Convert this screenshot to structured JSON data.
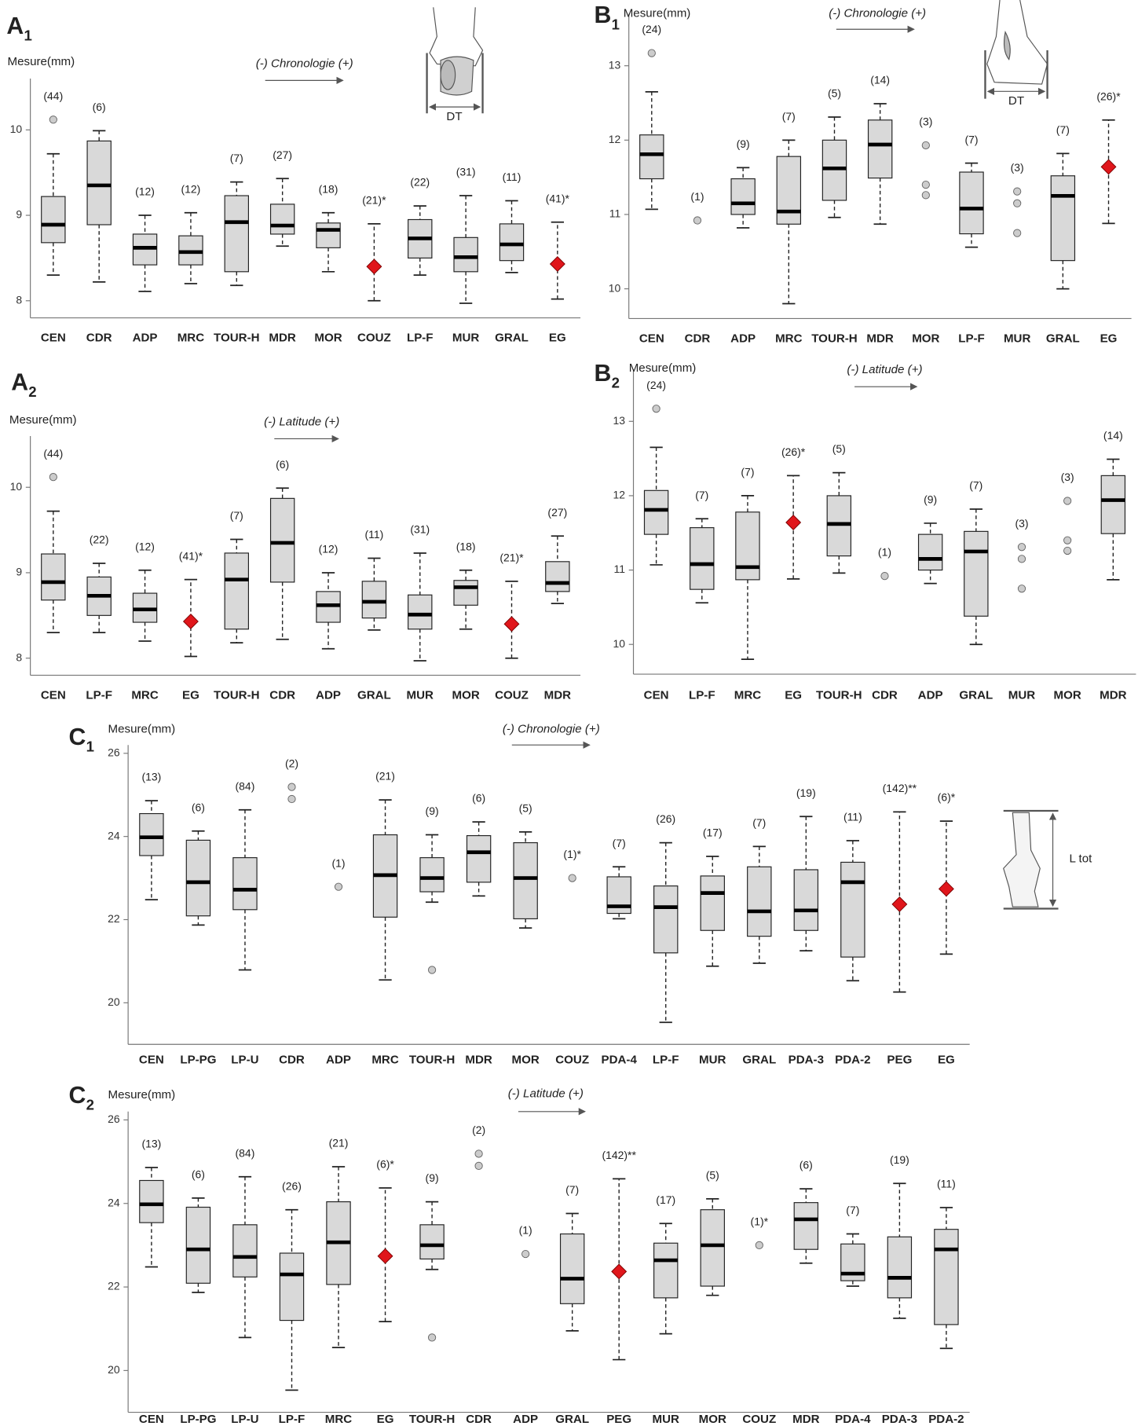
{
  "chart_data": [
    {
      "type": "box",
      "panel": "A",
      "panel_sub": "1",
      "ylabel": "Mesure(mm)",
      "annotation": "(-) Chronologie (+)",
      "figure_label": "DT",
      "categories": [
        "CEN",
        "CDR",
        "ADP",
        "MRC",
        "TOUR-H",
        "MDR",
        "MOR",
        "COUZ",
        "LP-F",
        "MUR",
        "GRAL",
        "EG"
      ],
      "n_labels": [
        "(44)",
        "(6)",
        "(12)",
        "(12)",
        "(7)",
        "(27)",
        "(18)",
        "(21)*",
        "(22)",
        "(31)",
        "(11)",
        "(41)*"
      ],
      "boxes": [
        {
          "low": 8.3,
          "q1": 8.68,
          "median": 8.89,
          "q3": 9.22,
          "high": 9.72,
          "outliers": [
            10.12
          ]
        },
        {
          "low": 8.22,
          "q1": 8.89,
          "median": 9.35,
          "q3": 9.87,
          "high": 9.99
        },
        {
          "low": 8.11,
          "q1": 8.42,
          "median": 8.62,
          "q3": 8.78,
          "high": 9.0
        },
        {
          "low": 8.2,
          "q1": 8.42,
          "median": 8.57,
          "q3": 8.76,
          "high": 9.03
        },
        {
          "low": 8.18,
          "q1": 8.34,
          "median": 8.92,
          "q3": 9.23,
          "high": 9.39
        },
        {
          "low": 8.64,
          "q1": 8.78,
          "median": 8.88,
          "q3": 9.13,
          "high": 9.43
        },
        {
          "low": 8.34,
          "q1": 8.62,
          "median": 8.83,
          "q3": 8.91,
          "high": 9.03
        },
        {
          "mean": 8.4,
          "low": 8.0,
          "high": 8.9
        },
        {
          "low": 8.3,
          "q1": 8.5,
          "median": 8.73,
          "q3": 8.95,
          "high": 9.11
        },
        {
          "low": 7.97,
          "q1": 8.34,
          "median": 8.51,
          "q3": 8.74,
          "high": 9.23
        },
        {
          "low": 8.33,
          "q1": 8.47,
          "median": 8.66,
          "q3": 8.9,
          "high": 9.17
        },
        {
          "mean": 8.43,
          "low": 8.02,
          "high": 8.92
        }
      ],
      "ylim": [
        7.8,
        10.6
      ],
      "yticks": [
        8,
        9,
        10
      ],
      "box_color": "#d9d9d9",
      "mean_color": "#e0161b",
      "outlier_color": "#cccccc"
    },
    {
      "type": "box",
      "panel": "A",
      "panel_sub": "2",
      "ylabel": "Mesure(mm)",
      "annotation": "(-) Latitude (+)",
      "categories": [
        "CEN",
        "LP-F",
        "MRC",
        "EG",
        "TOUR-H",
        "CDR",
        "ADP",
        "GRAL",
        "MUR",
        "MOR",
        "COUZ",
        "MDR"
      ],
      "n_labels": [
        "(44)",
        "(22)",
        "(12)",
        "(41)*",
        "(7)",
        "(6)",
        "(12)",
        "(11)",
        "(31)",
        "(18)",
        "(21)*",
        "(27)"
      ],
      "boxes": [
        {
          "low": 8.3,
          "q1": 8.68,
          "median": 8.89,
          "q3": 9.22,
          "high": 9.72,
          "outliers": [
            10.12
          ]
        },
        {
          "low": 8.3,
          "q1": 8.5,
          "median": 8.73,
          "q3": 8.95,
          "high": 9.11
        },
        {
          "low": 8.2,
          "q1": 8.42,
          "median": 8.57,
          "q3": 8.76,
          "high": 9.03
        },
        {
          "mean": 8.43,
          "low": 8.02,
          "high": 8.92
        },
        {
          "low": 8.18,
          "q1": 8.34,
          "median": 8.92,
          "q3": 9.23,
          "high": 9.39
        },
        {
          "low": 8.22,
          "q1": 8.89,
          "median": 9.35,
          "q3": 9.87,
          "high": 9.99
        },
        {
          "low": 8.11,
          "q1": 8.42,
          "median": 8.62,
          "q3": 8.78,
          "high": 9.0
        },
        {
          "low": 8.33,
          "q1": 8.47,
          "median": 8.66,
          "q3": 8.9,
          "high": 9.17
        },
        {
          "low": 7.97,
          "q1": 8.34,
          "median": 8.51,
          "q3": 8.74,
          "high": 9.23
        },
        {
          "low": 8.34,
          "q1": 8.62,
          "median": 8.83,
          "q3": 8.91,
          "high": 9.03
        },
        {
          "mean": 8.4,
          "low": 8.0,
          "high": 8.9
        },
        {
          "low": 8.64,
          "q1": 8.78,
          "median": 8.88,
          "q3": 9.13,
          "high": 9.43
        }
      ],
      "ylim": [
        7.8,
        10.6
      ],
      "yticks": [
        8,
        9,
        10
      ],
      "box_color": "#d9d9d9",
      "mean_color": "#e0161b",
      "outlier_color": "#cccccc"
    },
    {
      "type": "box",
      "panel": "B",
      "panel_sub": "1",
      "ylabel": "Mesure(mm)",
      "annotation": "(-) Chronologie (+)",
      "figure_label": "DT",
      "categories": [
        "CEN",
        "CDR",
        "ADP",
        "MRC",
        "TOUR-H",
        "MDR",
        "MOR",
        "LP-F",
        "MUR",
        "GRAL",
        "EG"
      ],
      "n_labels": [
        "(24)",
        "(1)",
        "(9)",
        "(7)",
        "(5)",
        "(14)",
        "(3)",
        "(7)",
        "(3)",
        "(7)",
        "(26)*"
      ],
      "boxes": [
        {
          "low": 11.07,
          "q1": 11.48,
          "median": 11.81,
          "q3": 12.07,
          "high": 12.65,
          "outliers": [
            13.17
          ]
        },
        {
          "points": [
            10.92
          ]
        },
        {
          "low": 10.82,
          "q1": 11.0,
          "median": 11.15,
          "q3": 11.48,
          "high": 11.63
        },
        {
          "low": 9.8,
          "q1": 10.87,
          "median": 11.04,
          "q3": 11.78,
          "high": 12.0
        },
        {
          "low": 10.96,
          "q1": 11.19,
          "median": 11.62,
          "q3": 12.0,
          "high": 12.31
        },
        {
          "low": 10.87,
          "q1": 11.49,
          "median": 11.94,
          "q3": 12.27,
          "high": 12.49
        },
        {
          "points": [
            11.93,
            11.4,
            11.26
          ]
        },
        {
          "low": 10.56,
          "q1": 10.74,
          "median": 11.08,
          "q3": 11.57,
          "high": 11.69
        },
        {
          "points": [
            11.31,
            11.15,
            10.75
          ]
        },
        {
          "low": 10.0,
          "q1": 10.38,
          "median": 11.25,
          "q3": 11.52,
          "high": 11.82
        },
        {
          "mean": 11.64,
          "low": 10.88,
          "high": 12.27
        }
      ],
      "ylim": [
        9.6,
        13.7
      ],
      "yticks": [
        10,
        11,
        12,
        13
      ],
      "box_color": "#d9d9d9",
      "mean_color": "#e0161b",
      "outlier_color": "#cccccc"
    },
    {
      "type": "box",
      "panel": "B",
      "panel_sub": "2",
      "ylabel": "Mesure(mm)",
      "annotation": "(-) Latitude (+)",
      "categories": [
        "CEN",
        "LP-F",
        "MRC",
        "EG",
        "TOUR-H",
        "CDR",
        "ADP",
        "GRAL",
        "MUR",
        "MOR",
        "MDR"
      ],
      "n_labels": [
        "(24)",
        "(7)",
        "(7)",
        "(26)*",
        "(5)",
        "(1)",
        "(9)",
        "(7)",
        "(3)",
        "(3)",
        "(14)"
      ],
      "boxes": [
        {
          "low": 11.07,
          "q1": 11.48,
          "median": 11.81,
          "q3": 12.07,
          "high": 12.65,
          "outliers": [
            13.17
          ]
        },
        {
          "low": 10.56,
          "q1": 10.74,
          "median": 11.08,
          "q3": 11.57,
          "high": 11.69
        },
        {
          "low": 9.8,
          "q1": 10.87,
          "median": 11.04,
          "q3": 11.78,
          "high": 12.0
        },
        {
          "mean": 11.64,
          "low": 10.88,
          "high": 12.27
        },
        {
          "low": 10.96,
          "q1": 11.19,
          "median": 11.62,
          "q3": 12.0,
          "high": 12.31
        },
        {
          "points": [
            10.92
          ]
        },
        {
          "low": 10.82,
          "q1": 11.0,
          "median": 11.15,
          "q3": 11.48,
          "high": 11.63
        },
        {
          "low": 10.0,
          "q1": 10.38,
          "median": 11.25,
          "q3": 11.52,
          "high": 11.82
        },
        {
          "points": [
            11.31,
            11.15,
            10.75
          ]
        },
        {
          "points": [
            11.93,
            11.4,
            11.26
          ]
        },
        {
          "low": 10.87,
          "q1": 11.49,
          "median": 11.94,
          "q3": 12.27,
          "high": 12.49
        }
      ],
      "ylim": [
        9.6,
        13.7
      ],
      "yticks": [
        10,
        11,
        12,
        13
      ],
      "box_color": "#d9d9d9",
      "mean_color": "#e0161b",
      "outlier_color": "#cccccc"
    },
    {
      "type": "box",
      "panel": "C",
      "panel_sub": "1",
      "ylabel": "Mesure(mm)",
      "annotation": "(-) Chronologie (+)",
      "figure_label": "L tot",
      "categories": [
        "CEN",
        "LP-PG",
        "LP-U",
        "CDR",
        "ADP",
        "MRC",
        "TOUR-H",
        "MDR",
        "MOR",
        "COUZ",
        "PDA-4",
        "LP-F",
        "MUR",
        "GRAL",
        "PDA-3",
        "PDA-2",
        "PEG",
        "EG"
      ],
      "n_labels": [
        "(13)",
        "(6)",
        "(84)",
        "(2)",
        "(1)",
        "(21)",
        "(9)",
        "(6)",
        "(5)",
        "(1)*",
        "(7)",
        "(26)",
        "(17)",
        "(7)",
        "(19)",
        "(11)",
        "(142)**",
        "(6)*"
      ],
      "boxes": [
        {
          "low": 22.48,
          "q1": 23.54,
          "median": 23.98,
          "q3": 24.55,
          "high": 24.86
        },
        {
          "low": 21.87,
          "q1": 22.09,
          "median": 22.9,
          "q3": 23.91,
          "high": 24.13
        },
        {
          "low": 20.79,
          "q1": 22.24,
          "median": 22.72,
          "q3": 23.49,
          "high": 24.64
        },
        {
          "points": [
            25.19,
            24.9
          ]
        },
        {
          "points": [
            22.79
          ]
        },
        {
          "low": 20.55,
          "q1": 22.06,
          "median": 23.07,
          "q3": 24.04,
          "high": 24.88
        },
        {
          "low": 22.42,
          "q1": 22.67,
          "median": 23.0,
          "q3": 23.49,
          "high": 24.04,
          "outliers": [
            20.79
          ]
        },
        {
          "low": 22.57,
          "q1": 22.9,
          "median": 23.62,
          "q3": 24.02,
          "high": 24.35
        },
        {
          "low": 21.8,
          "q1": 22.02,
          "median": 23.0,
          "q3": 23.85,
          "high": 24.11
        },
        {
          "points": [
            23.0
          ]
        },
        {
          "low": 22.02,
          "q1": 22.15,
          "median": 22.32,
          "q3": 23.03,
          "high": 23.27
        },
        {
          "low": 19.53,
          "q1": 21.2,
          "median": 22.3,
          "q3": 22.81,
          "high": 23.85
        },
        {
          "low": 20.88,
          "q1": 21.74,
          "median": 22.64,
          "q3": 23.05,
          "high": 23.52
        },
        {
          "low": 20.95,
          "q1": 21.6,
          "median": 22.2,
          "q3": 23.27,
          "high": 23.76
        },
        {
          "low": 21.25,
          "q1": 21.74,
          "median": 22.22,
          "q3": 23.2,
          "high": 24.48
        },
        {
          "low": 20.53,
          "q1": 21.1,
          "median": 22.9,
          "q3": 23.38,
          "high": 23.9
        },
        {
          "mean": 22.37,
          "low": 20.26,
          "high": 24.59
        },
        {
          "mean": 22.74,
          "low": 21.17,
          "high": 24.37
        }
      ],
      "ylim": [
        19,
        26.2
      ],
      "yticks": [
        20,
        22,
        24,
        26
      ],
      "box_color": "#d9d9d9",
      "mean_color": "#e0161b",
      "outlier_color": "#cccccc"
    },
    {
      "type": "box",
      "panel": "C",
      "panel_sub": "2",
      "ylabel": "Mesure(mm)",
      "annotation": "(-) Latitude (+)",
      "categories": [
        "CEN",
        "LP-PG",
        "LP-U",
        "LP-F",
        "MRC",
        "EG",
        "TOUR-H",
        "CDR",
        "ADP",
        "GRAL",
        "PEG",
        "MUR",
        "MOR",
        "COUZ",
        "MDR",
        "PDA-4",
        "PDA-3",
        "PDA-2"
      ],
      "n_labels": [
        "(13)",
        "(6)",
        "(84)",
        "(26)",
        "(21)",
        "(6)*",
        "(9)",
        "(2)",
        "(1)",
        "(7)",
        "(142)**",
        "(17)",
        "(5)",
        "(1)*",
        "(6)",
        "(7)",
        "(19)",
        "(11)"
      ],
      "boxes": [
        {
          "low": 22.48,
          "q1": 23.54,
          "median": 23.98,
          "q3": 24.55,
          "high": 24.86
        },
        {
          "low": 21.87,
          "q1": 22.09,
          "median": 22.9,
          "q3": 23.91,
          "high": 24.13
        },
        {
          "low": 20.79,
          "q1": 22.24,
          "median": 22.72,
          "q3": 23.49,
          "high": 24.64
        },
        {
          "low": 19.53,
          "q1": 21.2,
          "median": 22.3,
          "q3": 22.81,
          "high": 23.85
        },
        {
          "low": 20.55,
          "q1": 22.06,
          "median": 23.07,
          "q3": 24.04,
          "high": 24.88
        },
        {
          "mean": 22.74,
          "low": 21.17,
          "high": 24.37
        },
        {
          "low": 22.42,
          "q1": 22.67,
          "median": 23.0,
          "q3": 23.49,
          "high": 24.04,
          "outliers": [
            20.79
          ]
        },
        {
          "points": [
            25.19,
            24.9
          ]
        },
        {
          "points": [
            22.79
          ]
        },
        {
          "low": 20.95,
          "q1": 21.6,
          "median": 22.2,
          "q3": 23.27,
          "high": 23.76
        },
        {
          "mean": 22.37,
          "low": 20.26,
          "high": 24.59
        },
        {
          "low": 20.88,
          "q1": 21.74,
          "median": 22.64,
          "q3": 23.05,
          "high": 23.52
        },
        {
          "low": 21.8,
          "q1": 22.02,
          "median": 23.0,
          "q3": 23.85,
          "high": 24.11
        },
        {
          "points": [
            23.0
          ]
        },
        {
          "low": 22.57,
          "q1": 22.9,
          "median": 23.62,
          "q3": 24.02,
          "high": 24.35
        },
        {
          "low": 22.02,
          "q1": 22.15,
          "median": 22.32,
          "q3": 23.03,
          "high": 23.27
        },
        {
          "low": 21.25,
          "q1": 21.74,
          "median": 22.22,
          "q3": 23.2,
          "high": 24.48
        },
        {
          "low": 20.53,
          "q1": 21.1,
          "median": 22.9,
          "q3": 23.38,
          "high": 23.9
        }
      ],
      "ylim": [
        19,
        26.2
      ],
      "yticks": [
        20,
        22,
        24,
        26
      ],
      "box_color": "#d9d9d9",
      "mean_color": "#e0161b",
      "outlier_color": "#cccccc"
    }
  ]
}
